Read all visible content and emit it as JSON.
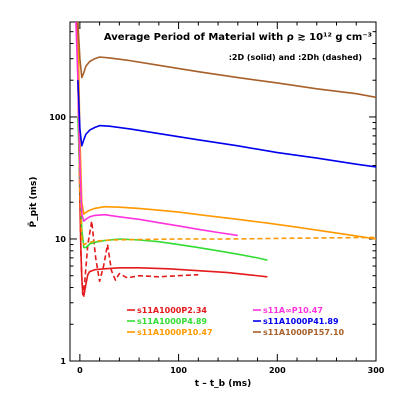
{
  "chart_data": {
    "type": "line",
    "title": "Average Period of Material with ρ ≳ 10¹² g cm⁻³",
    "subtitle": ":2D (solid) and :2Dh (dashed)",
    "xlabel": "t – t_b (ms)",
    "ylabel": "P̄_pit (ms)",
    "xlim": [
      -10,
      300
    ],
    "ylim": [
      1,
      600
    ],
    "yscale": "log",
    "xticks": [
      0,
      100,
      200,
      300
    ],
    "yticks": [
      1,
      10,
      100
    ],
    "grid": false,
    "legend_position": "bottom",
    "series": [
      {
        "name": "s11A1000P2.34",
        "color": "#e41a1c",
        "dash": false,
        "x": [
          -3,
          -1.5,
          0,
          1,
          2,
          3,
          4,
          6,
          8,
          10,
          15,
          25,
          40,
          60,
          90,
          120,
          150,
          170,
          190
        ],
        "y": [
          600,
          120,
          20,
          8,
          4.8,
          3.6,
          3.4,
          4.2,
          5.1,
          5.4,
          5.6,
          5.7,
          5.8,
          5.8,
          5.7,
          5.5,
          5.3,
          5.1,
          4.9
        ]
      },
      {
        "name": "s11A1000P2.34",
        "color": "#e41a1c",
        "dash": true,
        "x": [
          -1.5,
          0,
          1,
          2,
          3,
          5,
          8,
          12,
          16,
          20,
          24,
          28,
          32,
          36,
          40,
          48,
          60,
          80,
          100,
          120
        ],
        "y": [
          140,
          25,
          8,
          4.8,
          3.5,
          4.5,
          9,
          14,
          7,
          4.5,
          6,
          9,
          5.5,
          4.6,
          5.2,
          4.8,
          5,
          4.9,
          5,
          5.1
        ]
      },
      {
        "name": "s11A1000P4.89",
        "color": "#33dd33",
        "dash": false,
        "x": [
          -2,
          0,
          2,
          4,
          6,
          10,
          15,
          25,
          40,
          60,
          80,
          100,
          120,
          140,
          160,
          180,
          190
        ],
        "y": [
          100,
          30,
          12,
          8.5,
          8.5,
          9.1,
          9.4,
          9.7,
          10,
          9.8,
          9.5,
          9.0,
          8.5,
          8.0,
          7.5,
          7.0,
          6.7
        ]
      },
      {
        "name": "s11A1000P10.47",
        "color": "#ff9900",
        "dash": false,
        "x": [
          -2,
          0,
          2,
          4,
          6,
          10,
          15,
          25,
          40,
          60,
          80,
          100,
          130,
          160,
          190,
          220,
          250,
          280,
          300
        ],
        "y": [
          600,
          70,
          20,
          16,
          16.5,
          17.2,
          17.8,
          18.4,
          18.2,
          17.8,
          17.2,
          16.6,
          15.5,
          14.5,
          13.5,
          12.5,
          11.5,
          10.6,
          10
        ]
      },
      {
        "name": "s11A1000P10.47",
        "color": "#ff9900",
        "dash": true,
        "x": [
          -1.5,
          0,
          2,
          4,
          8,
          15,
          30,
          60,
          100,
          150,
          200,
          250,
          300
        ],
        "y": [
          120,
          25,
          10,
          9,
          9.3,
          9.6,
          9.8,
          9.9,
          10,
          10,
          10.1,
          10.2,
          10.3
        ]
      },
      {
        "name": "s11A∞P10.47",
        "color": "#ff33dd",
        "dash": false,
        "x": [
          -4,
          -2,
          0,
          2,
          4,
          6,
          10,
          15,
          25,
          40,
          60,
          80,
          100,
          120,
          140,
          160
        ],
        "y": [
          600,
          200,
          40,
          16,
          14,
          14.5,
          15.2,
          15.6,
          15.8,
          15.2,
          14.5,
          13.6,
          12.8,
          12,
          11.3,
          10.7
        ]
      },
      {
        "name": "s11A1000P41.89",
        "color": "#0000ee",
        "dash": false,
        "x": [
          -2,
          0,
          2,
          4,
          6,
          10,
          15,
          20,
          30,
          50,
          80,
          120,
          160,
          200,
          240,
          280,
          300
        ],
        "y": [
          200,
          80,
          58,
          65,
          72,
          78,
          82,
          85,
          84,
          80,
          73,
          65,
          58,
          51,
          46,
          41,
          39
        ]
      },
      {
        "name": "s11A1000P157.10",
        "color": "#a8602a",
        "dash": false,
        "x": [
          -2,
          0,
          2,
          4,
          6,
          10,
          15,
          20,
          30,
          50,
          80,
          120,
          160,
          200,
          240,
          280,
          300
        ],
        "y": [
          600,
          300,
          210,
          230,
          260,
          285,
          300,
          310,
          305,
          290,
          265,
          235,
          210,
          190,
          170,
          155,
          145
        ]
      }
    ]
  },
  "legend": {
    "col1": [
      {
        "label": "s11A1000P2.34",
        "color": "#e41a1c"
      },
      {
        "label": "s11A1000P4.89",
        "color": "#33dd33"
      },
      {
        "label": "s11A1000P10.47",
        "color": "#ff9900"
      }
    ],
    "col2": [
      {
        "label": "s11A∞P10.47",
        "color": "#ff33dd"
      },
      {
        "label": "s11A1000P41.89",
        "color": "#0000ee"
      },
      {
        "label": "s11A1000P157.10",
        "color": "#a8602a"
      }
    ]
  }
}
